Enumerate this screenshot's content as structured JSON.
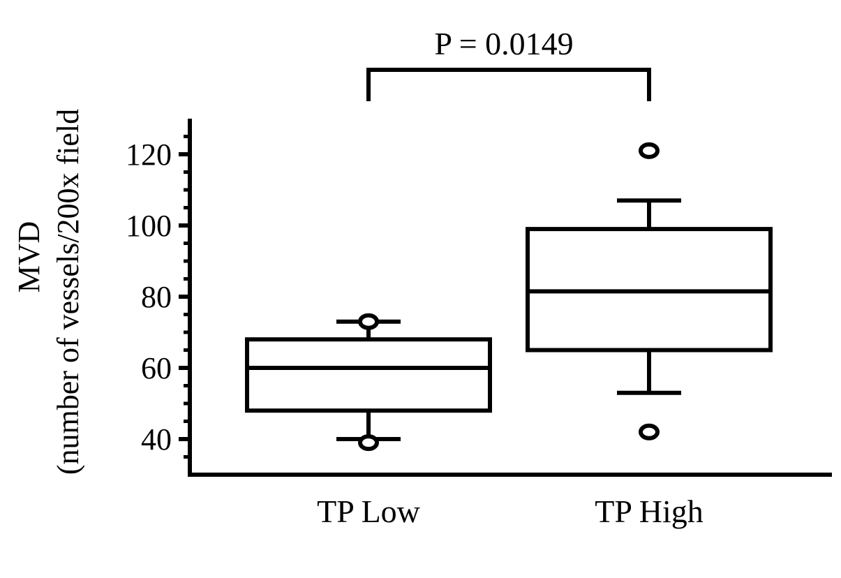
{
  "chart_data": {
    "type": "box",
    "title": "",
    "ylabel_line1": "MVD",
    "ylabel_line2": "(number of vessels/200x field",
    "xlabel": "",
    "ylim": [
      30,
      130
    ],
    "yticks": [
      40,
      60,
      80,
      100,
      120
    ],
    "ytick_labels": [
      "40",
      "60",
      "80",
      "100",
      "120"
    ],
    "minor_tick_step": 5,
    "categories": [
      "TP Low",
      "TP High"
    ],
    "boxes": [
      {
        "name": "TP Low",
        "whisker_low": 40,
        "q1": 48,
        "median": 60,
        "q3": 68,
        "whisker_high": 73,
        "outliers": [
          39,
          73
        ]
      },
      {
        "name": "TP High",
        "whisker_low": 53,
        "q1": 65,
        "median": 81.5,
        "q3": 99,
        "whisker_high": 107,
        "outliers": [
          42,
          121
        ]
      }
    ],
    "annotation": {
      "text": "P = 0.0149",
      "between": [
        "TP Low",
        "TP High"
      ]
    },
    "grid": false,
    "color": "#000000"
  }
}
